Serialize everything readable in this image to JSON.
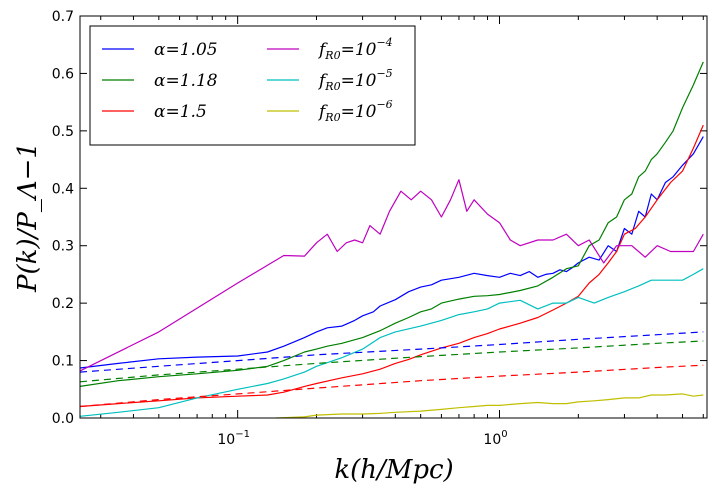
{
  "chart_data": {
    "type": "line",
    "title": "",
    "xlabel": "k(h/Mpc)",
    "ylabel": "P(k)/P_Λ−1",
    "xscale": "log",
    "xlim": [
      0.025,
      6.2
    ],
    "ylim": [
      0.0,
      0.7
    ],
    "yticks": [
      "0.0",
      "0.1",
      "0.2",
      "0.3",
      "0.4",
      "0.5",
      "0.6",
      "0.7"
    ],
    "xticks": [
      {
        "value": 0.1,
        "base": "10",
        "exp": "−1"
      },
      {
        "value": 1,
        "base": "10",
        "exp": "0"
      }
    ],
    "legend_position": "top-left",
    "series": [
      {
        "name": "α=1.05",
        "label_main": "α",
        "label_rest": "=1.05",
        "color": "#0000ff",
        "style": "solid",
        "x": [
          0.025,
          0.035,
          0.05,
          0.07,
          0.1,
          0.13,
          0.15,
          0.18,
          0.2,
          0.22,
          0.25,
          0.28,
          0.3,
          0.33,
          0.35,
          0.4,
          0.45,
          0.5,
          0.55,
          0.6,
          0.7,
          0.8,
          0.9,
          1.0,
          1.1,
          1.2,
          1.3,
          1.4,
          1.5,
          1.6,
          1.7,
          1.8,
          1.9,
          2.0,
          2.2,
          2.4,
          2.6,
          2.8,
          3.0,
          3.2,
          3.4,
          3.6,
          3.8,
          4.0,
          4.3,
          4.6,
          5.0,
          5.5,
          6.0
        ],
        "y": [
          0.087,
          0.095,
          0.103,
          0.106,
          0.108,
          0.115,
          0.125,
          0.14,
          0.15,
          0.157,
          0.16,
          0.17,
          0.178,
          0.185,
          0.195,
          0.206,
          0.22,
          0.228,
          0.232,
          0.24,
          0.245,
          0.252,
          0.248,
          0.245,
          0.252,
          0.248,
          0.255,
          0.245,
          0.25,
          0.252,
          0.258,
          0.255,
          0.262,
          0.27,
          0.28,
          0.275,
          0.3,
          0.29,
          0.33,
          0.32,
          0.36,
          0.35,
          0.39,
          0.38,
          0.41,
          0.42,
          0.44,
          0.46,
          0.49
        ]
      },
      {
        "name": "α=1.18",
        "label_main": "α",
        "label_rest": "=1.18",
        "color": "#008000",
        "style": "solid",
        "x": [
          0.025,
          0.035,
          0.05,
          0.07,
          0.1,
          0.13,
          0.15,
          0.18,
          0.2,
          0.22,
          0.25,
          0.3,
          0.35,
          0.4,
          0.45,
          0.5,
          0.55,
          0.6,
          0.7,
          0.8,
          0.9,
          1.0,
          1.2,
          1.4,
          1.6,
          1.8,
          2.0,
          2.2,
          2.4,
          2.6,
          2.8,
          3.0,
          3.2,
          3.4,
          3.6,
          3.8,
          4.0,
          4.3,
          4.6,
          5.0,
          5.5,
          6.0
        ],
        "y": [
          0.055,
          0.065,
          0.072,
          0.077,
          0.083,
          0.09,
          0.1,
          0.115,
          0.12,
          0.125,
          0.13,
          0.14,
          0.152,
          0.165,
          0.175,
          0.185,
          0.19,
          0.2,
          0.207,
          0.212,
          0.213,
          0.215,
          0.222,
          0.23,
          0.245,
          0.26,
          0.265,
          0.3,
          0.31,
          0.34,
          0.35,
          0.38,
          0.39,
          0.42,
          0.43,
          0.45,
          0.46,
          0.48,
          0.5,
          0.54,
          0.58,
          0.62
        ]
      },
      {
        "name": "α=1.5",
        "label_main": "α",
        "label_rest": "=1.5",
        "color": "#ff0000",
        "style": "solid",
        "x": [
          0.025,
          0.035,
          0.05,
          0.07,
          0.1,
          0.13,
          0.15,
          0.18,
          0.2,
          0.25,
          0.3,
          0.35,
          0.4,
          0.45,
          0.5,
          0.6,
          0.7,
          0.8,
          0.9,
          1.0,
          1.2,
          1.4,
          1.6,
          1.8,
          2.0,
          2.2,
          2.4,
          2.6,
          2.8,
          3.0,
          3.3,
          3.6,
          4.0,
          4.5,
          5.0,
          5.5,
          6.0
        ],
        "y": [
          0.02,
          0.025,
          0.03,
          0.035,
          0.038,
          0.04,
          0.045,
          0.055,
          0.06,
          0.07,
          0.077,
          0.085,
          0.095,
          0.102,
          0.11,
          0.122,
          0.13,
          0.14,
          0.147,
          0.155,
          0.165,
          0.175,
          0.188,
          0.2,
          0.212,
          0.235,
          0.25,
          0.27,
          0.29,
          0.32,
          0.33,
          0.35,
          0.38,
          0.41,
          0.43,
          0.47,
          0.51
        ]
      },
      {
        "name": "f_R0=10^-4",
        "label_main": "f",
        "label_sub": "R0",
        "label_rest": "=10",
        "label_exp": "−4",
        "color": "#bf00bf",
        "style": "solid",
        "x": [
          0.025,
          0.05,
          0.1,
          0.15,
          0.18,
          0.2,
          0.22,
          0.24,
          0.26,
          0.28,
          0.3,
          0.32,
          0.35,
          0.38,
          0.42,
          0.46,
          0.5,
          0.55,
          0.6,
          0.65,
          0.7,
          0.75,
          0.8,
          0.9,
          1.0,
          1.1,
          1.2,
          1.4,
          1.6,
          1.8,
          2.0,
          2.2,
          2.5,
          2.8,
          3.2,
          3.6,
          4.0,
          4.5,
          5.0,
          5.5,
          6.0
        ],
        "y": [
          0.082,
          0.15,
          0.235,
          0.283,
          0.282,
          0.305,
          0.32,
          0.29,
          0.305,
          0.31,
          0.305,
          0.335,
          0.32,
          0.36,
          0.395,
          0.38,
          0.395,
          0.38,
          0.35,
          0.38,
          0.415,
          0.36,
          0.38,
          0.355,
          0.34,
          0.31,
          0.3,
          0.31,
          0.31,
          0.32,
          0.3,
          0.31,
          0.27,
          0.3,
          0.3,
          0.28,
          0.3,
          0.29,
          0.29,
          0.29,
          0.32
        ]
      },
      {
        "name": "f_R0=10^-5",
        "label_main": "f",
        "label_sub": "R0",
        "label_rest": "=10",
        "label_exp": "−5",
        "color": "#00bfbf",
        "style": "solid",
        "x": [
          0.025,
          0.035,
          0.05,
          0.07,
          0.1,
          0.13,
          0.15,
          0.18,
          0.2,
          0.25,
          0.3,
          0.35,
          0.4,
          0.5,
          0.6,
          0.7,
          0.8,
          0.9,
          1.0,
          1.2,
          1.4,
          1.6,
          1.8,
          2.0,
          2.3,
          2.6,
          3.0,
          3.4,
          3.8,
          4.3,
          5.0,
          5.5,
          6.0
        ],
        "y": [
          0.003,
          0.01,
          0.018,
          0.035,
          0.05,
          0.06,
          0.068,
          0.08,
          0.09,
          0.105,
          0.12,
          0.14,
          0.15,
          0.16,
          0.17,
          0.18,
          0.185,
          0.19,
          0.2,
          0.205,
          0.19,
          0.2,
          0.2,
          0.21,
          0.2,
          0.21,
          0.22,
          0.23,
          0.24,
          0.24,
          0.24,
          0.25,
          0.26
        ]
      },
      {
        "name": "f_R0=10^-6",
        "label_main": "f",
        "label_sub": "R0",
        "label_rest": "=10",
        "label_exp": "−6",
        "color": "#bfbf00",
        "style": "solid",
        "x": [
          0.14,
          0.18,
          0.2,
          0.25,
          0.3,
          0.35,
          0.4,
          0.5,
          0.6,
          0.7,
          0.8,
          0.9,
          1.0,
          1.2,
          1.4,
          1.6,
          1.8,
          2.0,
          2.3,
          2.6,
          3.0,
          3.4,
          3.8,
          4.3,
          5.0,
          5.5,
          6.0
        ],
        "y": [
          0.0,
          0.002,
          0.005,
          0.007,
          0.007,
          0.008,
          0.01,
          0.012,
          0.015,
          0.018,
          0.02,
          0.022,
          0.022,
          0.025,
          0.027,
          0.025,
          0.025,
          0.028,
          0.03,
          0.032,
          0.035,
          0.035,
          0.04,
          0.04,
          0.042,
          0.038,
          0.04
        ]
      },
      {
        "name": "α=1.05 (linear)",
        "color": "#0000ff",
        "style": "dashed",
        "in_legend": false,
        "x": [
          0.025,
          0.05,
          0.1,
          0.2,
          0.5,
          1.0,
          2.0,
          4.0,
          6.0
        ],
        "y": [
          0.08,
          0.09,
          0.1,
          0.11,
          0.12,
          0.128,
          0.137,
          0.145,
          0.15
        ]
      },
      {
        "name": "α=1.18 (linear)",
        "color": "#008000",
        "style": "dashed",
        "in_legend": false,
        "x": [
          0.025,
          0.05,
          0.1,
          0.2,
          0.5,
          1.0,
          2.0,
          4.0,
          6.0
        ],
        "y": [
          0.063,
          0.075,
          0.085,
          0.095,
          0.107,
          0.115,
          0.122,
          0.13,
          0.134
        ]
      },
      {
        "name": "α=1.5 (linear)",
        "color": "#ff0000",
        "style": "dashed",
        "in_legend": false,
        "x": [
          0.025,
          0.05,
          0.1,
          0.2,
          0.5,
          1.0,
          2.0,
          4.0,
          6.0
        ],
        "y": [
          0.02,
          0.032,
          0.042,
          0.052,
          0.065,
          0.073,
          0.08,
          0.088,
          0.092
        ]
      }
    ]
  }
}
